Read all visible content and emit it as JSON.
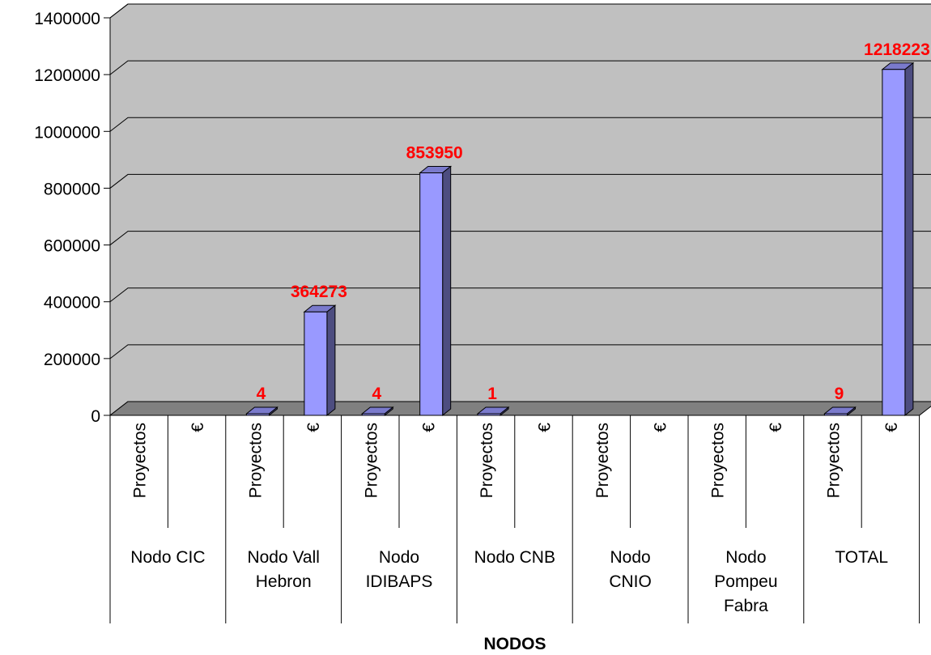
{
  "chart_data": {
    "type": "bar",
    "title": "",
    "xlabel": "NODOS",
    "ylabel": "",
    "ylim": [
      0,
      1400000
    ],
    "yticks": [
      0,
      200000,
      400000,
      600000,
      800000,
      1000000,
      1200000,
      1400000
    ],
    "grid": true,
    "legend": "none",
    "groups": [
      {
        "name": "Nodo CIC",
        "label_lines": [
          "Nodo CIC"
        ],
        "sub": [
          {
            "label": "Proyectos",
            "value": null
          },
          {
            "label": "€",
            "value": null
          }
        ]
      },
      {
        "name": "Nodo Vall Hebron",
        "label_lines": [
          "Nodo Vall",
          "Hebron"
        ],
        "sub": [
          {
            "label": "Proyectos",
            "value": 4
          },
          {
            "label": "€",
            "value": 364273
          }
        ]
      },
      {
        "name": "Nodo IDIBAPS",
        "label_lines": [
          "Nodo",
          "IDIBAPS"
        ],
        "sub": [
          {
            "label": "Proyectos",
            "value": 4
          },
          {
            "label": "€",
            "value": 853950
          }
        ]
      },
      {
        "name": "Nodo CNB",
        "label_lines": [
          "Nodo CNB"
        ],
        "sub": [
          {
            "label": "Proyectos",
            "value": 1
          },
          {
            "label": "€",
            "value": null
          }
        ]
      },
      {
        "name": "Nodo CNIO",
        "label_lines": [
          "Nodo",
          "CNIO"
        ],
        "sub": [
          {
            "label": "Proyectos",
            "value": null
          },
          {
            "label": "€",
            "value": null
          }
        ]
      },
      {
        "name": "Nodo Pompeu Fabra",
        "label_lines": [
          "Nodo",
          "Pompeu",
          "Fabra"
        ],
        "sub": [
          {
            "label": "Proyectos",
            "value": null
          },
          {
            "label": "€",
            "value": null
          }
        ]
      },
      {
        "name": "TOTAL",
        "label_lines": [
          "TOTAL"
        ],
        "sub": [
          {
            "label": "Proyectos",
            "value": 9
          },
          {
            "label": "€",
            "value": 1218223
          }
        ]
      }
    ],
    "colors": {
      "wall": "#c0c0c0",
      "floor": "#808080",
      "bar_front": "#9999ff",
      "bar_side": "#4d4d80",
      "bar_top": "#7a7acc",
      "data_label": "#ff0000"
    }
  }
}
